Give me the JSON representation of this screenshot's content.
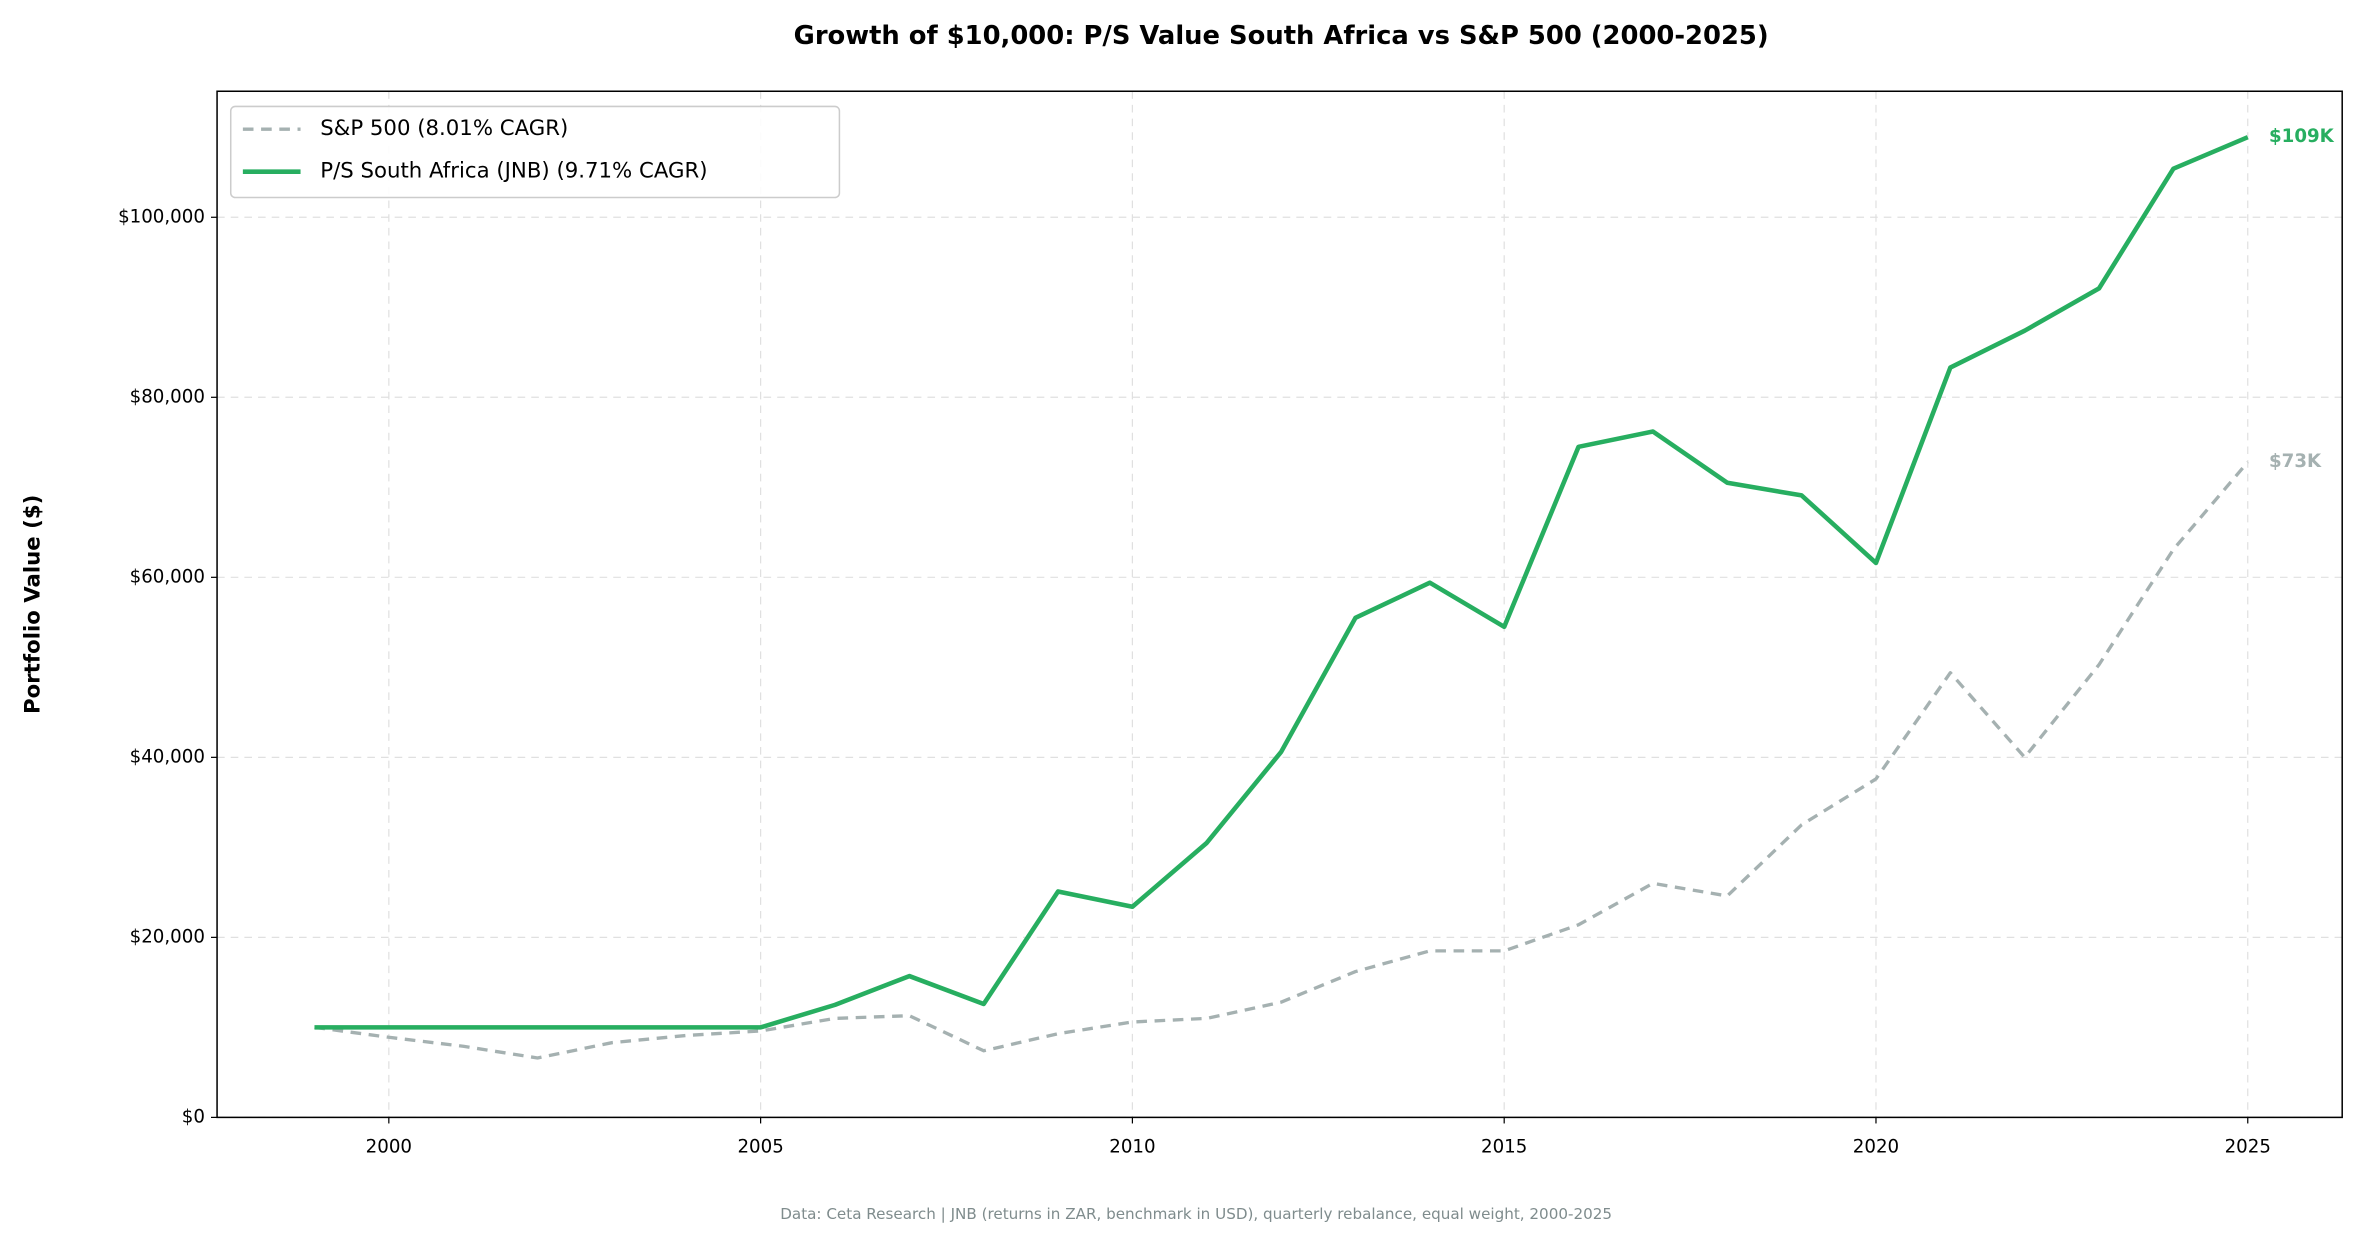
{
  "chart_data": {
    "type": "line",
    "title": "Growth of $10,000: P/S Value South Africa vs S&P 500 (2000-2025)",
    "y_label": "Portfolio Value ($)",
    "footer": "Data: Ceta Research | JNB (returns in ZAR, benchmark in USD), quarterly rebalance, equal weight, 2000-2025",
    "x": [
      1999,
      2000,
      2001,
      2002,
      2003,
      2004,
      2005,
      2006,
      2007,
      2008,
      2009,
      2010,
      2011,
      2012,
      2013,
      2014,
      2015,
      2016,
      2017,
      2018,
      2019,
      2020,
      2021,
      2022,
      2023,
      2024,
      2025
    ],
    "series": [
      {
        "name": "S&P 500 (8.01% CAGR)",
        "color": "#a5b1b1",
        "dashed": true,
        "values": [
          10000,
          8900,
          7900,
          6600,
          8300,
          9100,
          9600,
          11000,
          11300,
          7400,
          9300,
          10600,
          11000,
          12800,
          16200,
          18500,
          18500,
          21400,
          26000,
          24600,
          32500,
          37600,
          49400,
          40000,
          50300,
          63100,
          72800
        ]
      },
      {
        "name": "P/S South Africa (JNB) (9.71% CAGR)",
        "color": "#27ae60",
        "dashed": false,
        "values": [
          10000,
          10000,
          10000,
          10000,
          10000,
          10000,
          10000,
          12500,
          15700,
          12600,
          25100,
          23400,
          30500,
          40600,
          55500,
          59400,
          54500,
          74500,
          76200,
          70500,
          69100,
          61600,
          83300,
          87400,
          92100,
          105400,
          108900
        ]
      }
    ],
    "annotations": [
      "$73K",
      "$109K"
    ],
    "xlim": [
      1997.69,
      2026.27
    ],
    "xticks": [
      2000,
      2005,
      2010,
      2015,
      2020,
      2025
    ],
    "ylim": [
      0,
      114000
    ],
    "yticks": [
      {
        "value": 0,
        "label": "$0"
      },
      {
        "value": 20000,
        "label": "$20,000"
      },
      {
        "value": 40000,
        "label": "$40,000"
      },
      {
        "value": 60000,
        "label": "$60,000"
      },
      {
        "value": 80000,
        "label": "$80,000"
      },
      {
        "value": 100000,
        "label": "$100,000"
      }
    ],
    "grid": true,
    "legend": "upper left"
  }
}
